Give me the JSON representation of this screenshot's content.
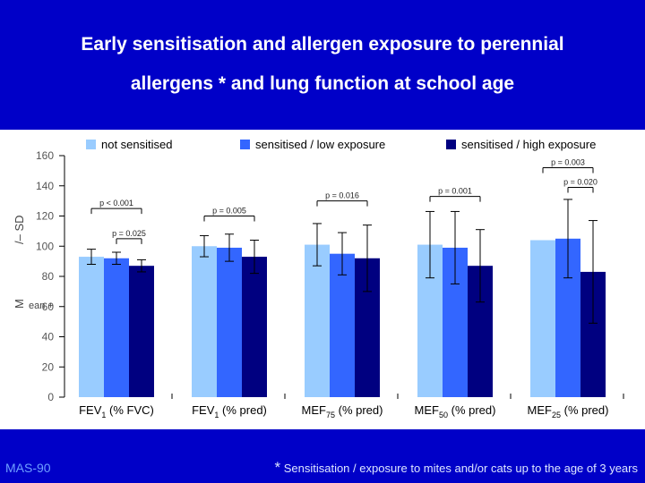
{
  "title_line1": "Early sensitisation and allergen exposure to perennial",
  "title_line2": "allergens * and lung function at school age",
  "footer": {
    "left": "MAS-90",
    "note_star": "*",
    "note_text": " Sensitisation / exposure to mites and/or cats up to the age of 3 years"
  },
  "colors": {
    "background": "#0000c8",
    "panel": "#ffffff",
    "not_sensitised": "#99ccff",
    "low_exposure": "#3366ff",
    "high_exposure": "#000080"
  },
  "chart_data": {
    "type": "bar",
    "ylabel": "M",
    "ylabel_suffix": "/– SD",
    "ylabel_partial": "ean +",
    "ylim": [
      0,
      160
    ],
    "yticks": [
      0,
      20,
      40,
      60,
      80,
      100,
      120,
      140,
      160
    ],
    "legend": [
      "not sensitised",
      "sensitised / low exposure",
      "sensitised / high exposure"
    ],
    "legend_position": "top",
    "categories": [
      {
        "main": "FEV",
        "sub": "1",
        "rest": " (% FVC)"
      },
      {
        "main": "FEV",
        "sub": "1",
        "rest": " (% pred)"
      },
      {
        "main": "MEF",
        "sub": "75",
        "rest": " (% pred)"
      },
      {
        "main": "MEF",
        "sub": "50",
        "rest": " (% pred)"
      },
      {
        "main": "MEF",
        "sub": "25",
        "rest": " (% pred)"
      }
    ],
    "series": [
      {
        "name": "not sensitised",
        "values": [
          93,
          100,
          101,
          101,
          104
        ],
        "errors": [
          5,
          7,
          14,
          22,
          0
        ]
      },
      {
        "name": "sensitised / low exposure",
        "values": [
          92,
          99,
          95,
          99,
          105
        ],
        "errors": [
          4,
          9,
          14,
          24,
          26
        ]
      },
      {
        "name": "sensitised / high exposure",
        "values": [
          87,
          93,
          92,
          87,
          83
        ],
        "errors": [
          4,
          11,
          22,
          24,
          34
        ]
      }
    ],
    "annotations": [
      {
        "text": "p < 0.001",
        "category": 0,
        "from": 0,
        "to": 2,
        "y": 125
      },
      {
        "text": "p = 0.025",
        "category": 0,
        "from": 1,
        "to": 2,
        "y": 105
      },
      {
        "text": "p = 0.005",
        "category": 1,
        "from": 0,
        "to": 2,
        "y": 120
      },
      {
        "text": "p = 0.016",
        "category": 2,
        "from": 0,
        "to": 2,
        "y": 130
      },
      {
        "text": "p = 0.001",
        "category": 3,
        "from": 0,
        "to": 2,
        "y": 133
      },
      {
        "text": "p = 0.003",
        "category": 4,
        "from": 0,
        "to": 2,
        "y": 152
      },
      {
        "text": "p = 0.020",
        "category": 4,
        "from": 1,
        "to": 2,
        "y": 139
      }
    ]
  }
}
